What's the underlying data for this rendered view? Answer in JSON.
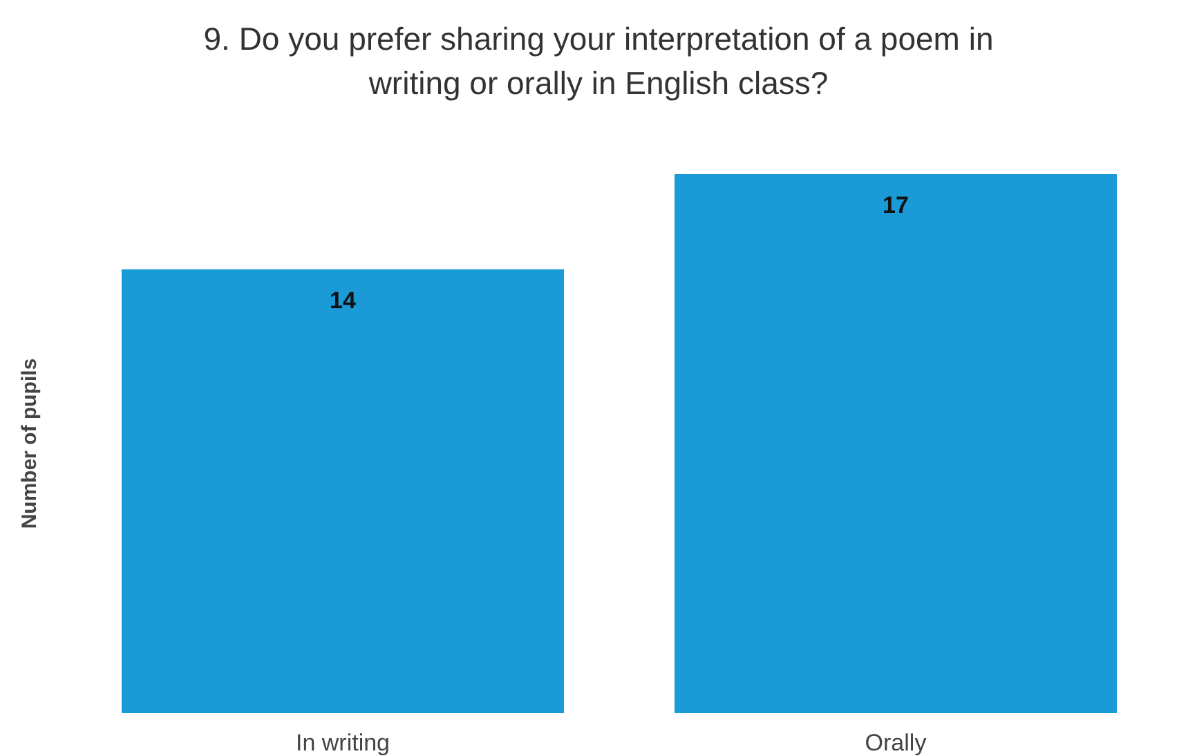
{
  "chart_data": {
    "type": "bar",
    "title": "9. Do you prefer sharing your interpretation of a poem in writing or orally in English class?",
    "ylabel": "Number of pupils",
    "categories": [
      "In writing",
      "Orally"
    ],
    "values": [
      14,
      17
    ],
    "color": "#1a9ad6",
    "ylim": [
      0,
      17
    ],
    "data_labels": true,
    "tick_labels": "x"
  }
}
